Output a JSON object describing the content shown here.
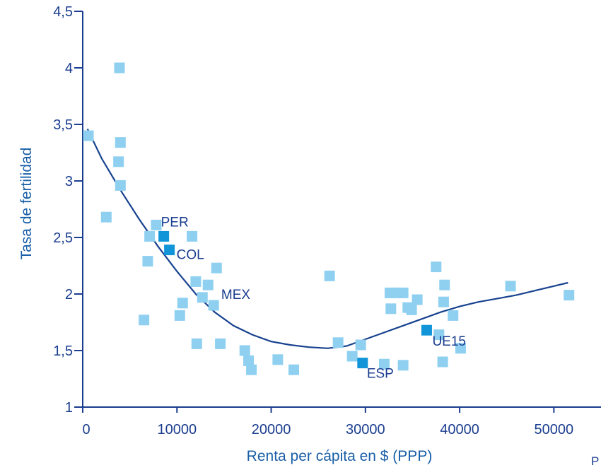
{
  "chart_data": {
    "type": "scatter",
    "xlabel": "Renta per cápita en $ (PPP)",
    "ylabel": "Tasa de fertilidad",
    "xlim": [
      0,
      55000
    ],
    "ylim": [
      1,
      4.5
    ],
    "x_ticks": [
      "0",
      "10000",
      "20000",
      "30000",
      "40000",
      "50000"
    ],
    "y_ticks": [
      "1",
      "1,5",
      "2",
      "2,5",
      "3",
      "3,5",
      "4",
      "4,5"
    ],
    "x_tick_values": [
      0,
      10000,
      20000,
      30000,
      40000,
      50000
    ],
    "y_tick_values": [
      1,
      1.5,
      2,
      2.5,
      3,
      3.5,
      4,
      4.5
    ],
    "grid": false,
    "colors": {
      "points": "#8fd0f1",
      "highlight": "#1195d8",
      "trend": "#17428f",
      "axis": "#1a3d8f"
    },
    "series": [
      {
        "points": [
          [
            600,
            3.4
          ],
          [
            3900,
            4.0
          ],
          [
            4000,
            3.34
          ],
          [
            3800,
            3.17
          ],
          [
            4000,
            2.96
          ],
          [
            2500,
            2.68
          ],
          [
            7800,
            2.61
          ],
          [
            7100,
            2.51
          ],
          [
            11600,
            2.51
          ],
          [
            6900,
            2.29
          ],
          [
            6500,
            1.77
          ],
          [
            12000,
            2.11
          ],
          [
            14200,
            2.23
          ],
          [
            13300,
            2.08
          ],
          [
            12700,
            1.97
          ],
          [
            10600,
            1.92
          ],
          [
            13900,
            1.9
          ],
          [
            10300,
            1.81
          ],
          [
            12100,
            1.56
          ],
          [
            14600,
            1.56
          ],
          [
            17200,
            1.5
          ],
          [
            17600,
            1.41
          ],
          [
            17900,
            1.33
          ],
          [
            20700,
            1.42
          ],
          [
            22400,
            1.33
          ],
          [
            26200,
            2.16
          ],
          [
            27100,
            1.57
          ],
          [
            28600,
            1.45
          ],
          [
            29500,
            1.55
          ],
          [
            32000,
            1.38
          ],
          [
            32600,
            2.01
          ],
          [
            33300,
            2.01
          ],
          [
            34000,
            2.01
          ],
          [
            32700,
            1.87
          ],
          [
            34500,
            1.88
          ],
          [
            34900,
            1.86
          ],
          [
            35500,
            1.95
          ],
          [
            37500,
            2.24
          ],
          [
            38400,
            2.08
          ],
          [
            38300,
            1.93
          ],
          [
            39300,
            1.81
          ],
          [
            37800,
            1.64
          ],
          [
            38200,
            1.4
          ],
          [
            40100,
            1.52
          ],
          [
            34000,
            1.37
          ],
          [
            45400,
            2.07
          ],
          [
            51600,
            1.99
          ]
        ]
      },
      {
        "points": [
          [
            8600,
            2.51
          ],
          [
            9200,
            2.39
          ],
          [
            29700,
            1.39
          ],
          [
            36500,
            1.68
          ]
        ],
        "labels": [
          "PER",
          "COL",
          "ESP",
          "UE15"
        ]
      }
    ],
    "annotations": [
      {
        "text": "MEX",
        "x": 14700,
        "y": 2.0
      }
    ],
    "trend_line": [
      [
        500,
        3.46
      ],
      [
        2000,
        3.2
      ],
      [
        4000,
        2.92
      ],
      [
        6000,
        2.66
      ],
      [
        8000,
        2.42
      ],
      [
        10000,
        2.2
      ],
      [
        12000,
        2.0
      ],
      [
        14000,
        1.84
      ],
      [
        16000,
        1.72
      ],
      [
        18000,
        1.64
      ],
      [
        20000,
        1.58
      ],
      [
        22000,
        1.55
      ],
      [
        24000,
        1.53
      ],
      [
        26000,
        1.52
      ],
      [
        28000,
        1.54
      ],
      [
        30000,
        1.6
      ],
      [
        32000,
        1.66
      ],
      [
        34000,
        1.72
      ],
      [
        36000,
        1.78
      ],
      [
        38000,
        1.84
      ],
      [
        40000,
        1.89
      ],
      [
        42000,
        1.93
      ],
      [
        44000,
        1.96
      ],
      [
        46000,
        1.99
      ],
      [
        48000,
        2.03
      ],
      [
        50000,
        2.07
      ],
      [
        51500,
        2.1
      ]
    ]
  },
  "footer": {
    "corner_text": "P"
  }
}
